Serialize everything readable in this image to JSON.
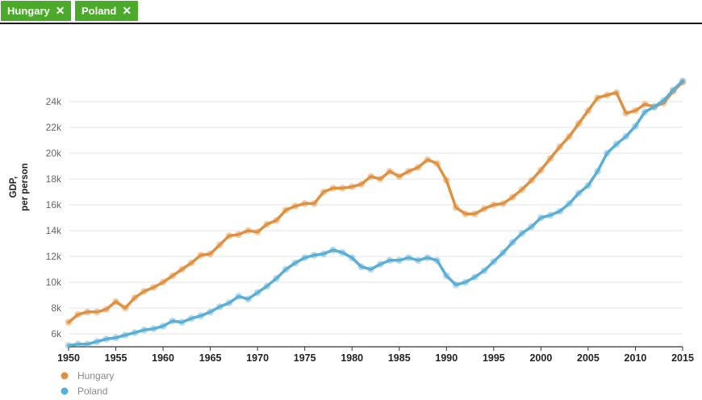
{
  "filters": [
    {
      "label": "Hungary",
      "remove_icon": "close-icon"
    },
    {
      "label": "Poland",
      "remove_icon": "close-icon"
    }
  ],
  "chart_data": {
    "type": "line",
    "title": "",
    "xlabel": "",
    "ylabel": [
      "GDP,",
      "per person"
    ],
    "xlim": [
      1950,
      2015
    ],
    "ylim": [
      5000,
      25800
    ],
    "x_ticks": [
      1950,
      1955,
      1960,
      1965,
      1970,
      1975,
      1980,
      1985,
      1990,
      1995,
      2000,
      2005,
      2010,
      2015
    ],
    "y_ticks": [
      6000,
      8000,
      10000,
      12000,
      14000,
      16000,
      18000,
      20000,
      22000,
      24000
    ],
    "y_tick_labels": [
      "6k",
      "8k",
      "10k",
      "12k",
      "14k",
      "16k",
      "18k",
      "20k",
      "22k",
      "24k"
    ],
    "grid": true,
    "legend_position": "bottom-left",
    "x": [
      1950,
      1951,
      1952,
      1953,
      1954,
      1955,
      1956,
      1957,
      1958,
      1959,
      1960,
      1961,
      1962,
      1963,
      1964,
      1965,
      1966,
      1967,
      1968,
      1969,
      1970,
      1971,
      1972,
      1973,
      1974,
      1975,
      1976,
      1977,
      1978,
      1979,
      1980,
      1981,
      1982,
      1983,
      1984,
      1985,
      1986,
      1987,
      1988,
      1989,
      1990,
      1991,
      1992,
      1993,
      1994,
      1995,
      1996,
      1997,
      1998,
      1999,
      2000,
      2001,
      2002,
      2003,
      2004,
      2005,
      2006,
      2007,
      2008,
      2009,
      2010,
      2011,
      2012,
      2013,
      2014,
      2015
    ],
    "series": [
      {
        "name": "Hungary",
        "color": "#e0913f",
        "values": [
          6900,
          7500,
          7700,
          7700,
          7900,
          8500,
          8000,
          8800,
          9300,
          9600,
          10000,
          10500,
          11000,
          11500,
          12100,
          12200,
          12900,
          13600,
          13700,
          14000,
          13900,
          14500,
          14800,
          15600,
          15900,
          16100,
          16100,
          17000,
          17300,
          17300,
          17400,
          17600,
          18200,
          18000,
          18600,
          18200,
          18600,
          18900,
          19500,
          19200,
          17900,
          15800,
          15300,
          15300,
          15700,
          16000,
          16100,
          16600,
          17200,
          17900,
          18700,
          19600,
          20500,
          21300,
          22300,
          23300,
          24300,
          24500,
          24700,
          23100,
          23300,
          23800,
          23600,
          23900,
          24800,
          25500
        ]
      },
      {
        "name": "Poland",
        "color": "#5aafd6",
        "values": [
          5100,
          5200,
          5200,
          5400,
          5600,
          5700,
          5900,
          6100,
          6300,
          6400,
          6600,
          7000,
          6900,
          7200,
          7400,
          7700,
          8100,
          8400,
          8900,
          8700,
          9200,
          9700,
          10300,
          11000,
          11500,
          11900,
          12100,
          12200,
          12500,
          12300,
          11900,
          11200,
          11000,
          11400,
          11700,
          11700,
          11900,
          11700,
          11900,
          11700,
          10500,
          9800,
          10000,
          10400,
          10900,
          11600,
          12300,
          13100,
          13800,
          14300,
          15000,
          15200,
          15500,
          16100,
          16900,
          17500,
          18600,
          20000,
          20700,
          21300,
          22100,
          23200,
          23600,
          24100,
          24900,
          25600
        ]
      }
    ]
  }
}
